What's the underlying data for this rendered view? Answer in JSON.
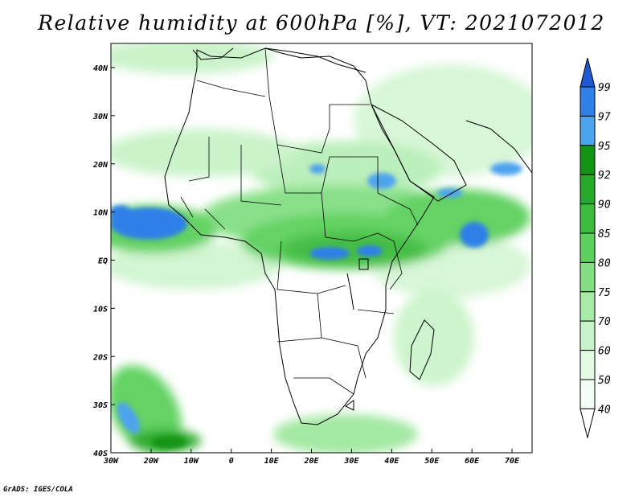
{
  "title": "Relative humidity at 600hPa [%], VT: 2021072012",
  "credit": "GrADS: IGES/COLA",
  "map": {
    "x_ticks": [
      "30W",
      "20W",
      "10W",
      "0",
      "10E",
      "20E",
      "30E",
      "40E",
      "50E",
      "60E",
      "70E"
    ],
    "y_ticks": [
      "40N",
      "30N",
      "20N",
      "10N",
      "EQ",
      "10S",
      "20S",
      "30S",
      "40S"
    ]
  },
  "colorbar": {
    "labels": [
      "99",
      "97",
      "95",
      "92",
      "90",
      "85",
      "80",
      "75",
      "70",
      "60",
      "50",
      "40"
    ],
    "colors": {
      "99": "#1f58d4",
      "97": "#2f80e8",
      "95": "#4ea3ee",
      "92": "#149414",
      "90": "#28a828",
      "85": "#3dbb3d",
      "80": "#5cd05c",
      "75": "#84df84",
      "70": "#a8eba8",
      "60": "#c8f3c8",
      "50": "#e3fae3",
      "40": "#f4fdf4"
    }
  }
}
